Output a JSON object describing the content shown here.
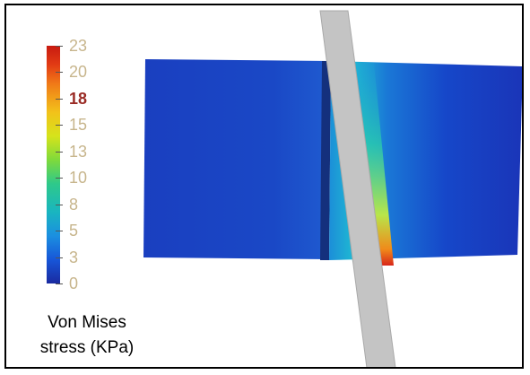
{
  "colorbar": {
    "ticks": [
      {
        "label": "23",
        "highlight": false
      },
      {
        "label": "20",
        "highlight": false
      },
      {
        "label": "18",
        "highlight": true
      },
      {
        "label": "15",
        "highlight": false
      },
      {
        "label": "13",
        "highlight": false
      },
      {
        "label": "10",
        "highlight": false
      },
      {
        "label": "8",
        "highlight": false
      },
      {
        "label": "5",
        "highlight": false
      },
      {
        "label": "3",
        "highlight": false
      },
      {
        "label": "0",
        "highlight": false
      }
    ],
    "title_line1": "Von Mises",
    "title_line2": "stress (KPa)"
  },
  "colors": {
    "low": "#1a2aa0",
    "high": "#c81a10",
    "highlight_label": "#9a2b25",
    "tick_label": "#c7b58c",
    "rod": "#c4c4c4"
  }
}
